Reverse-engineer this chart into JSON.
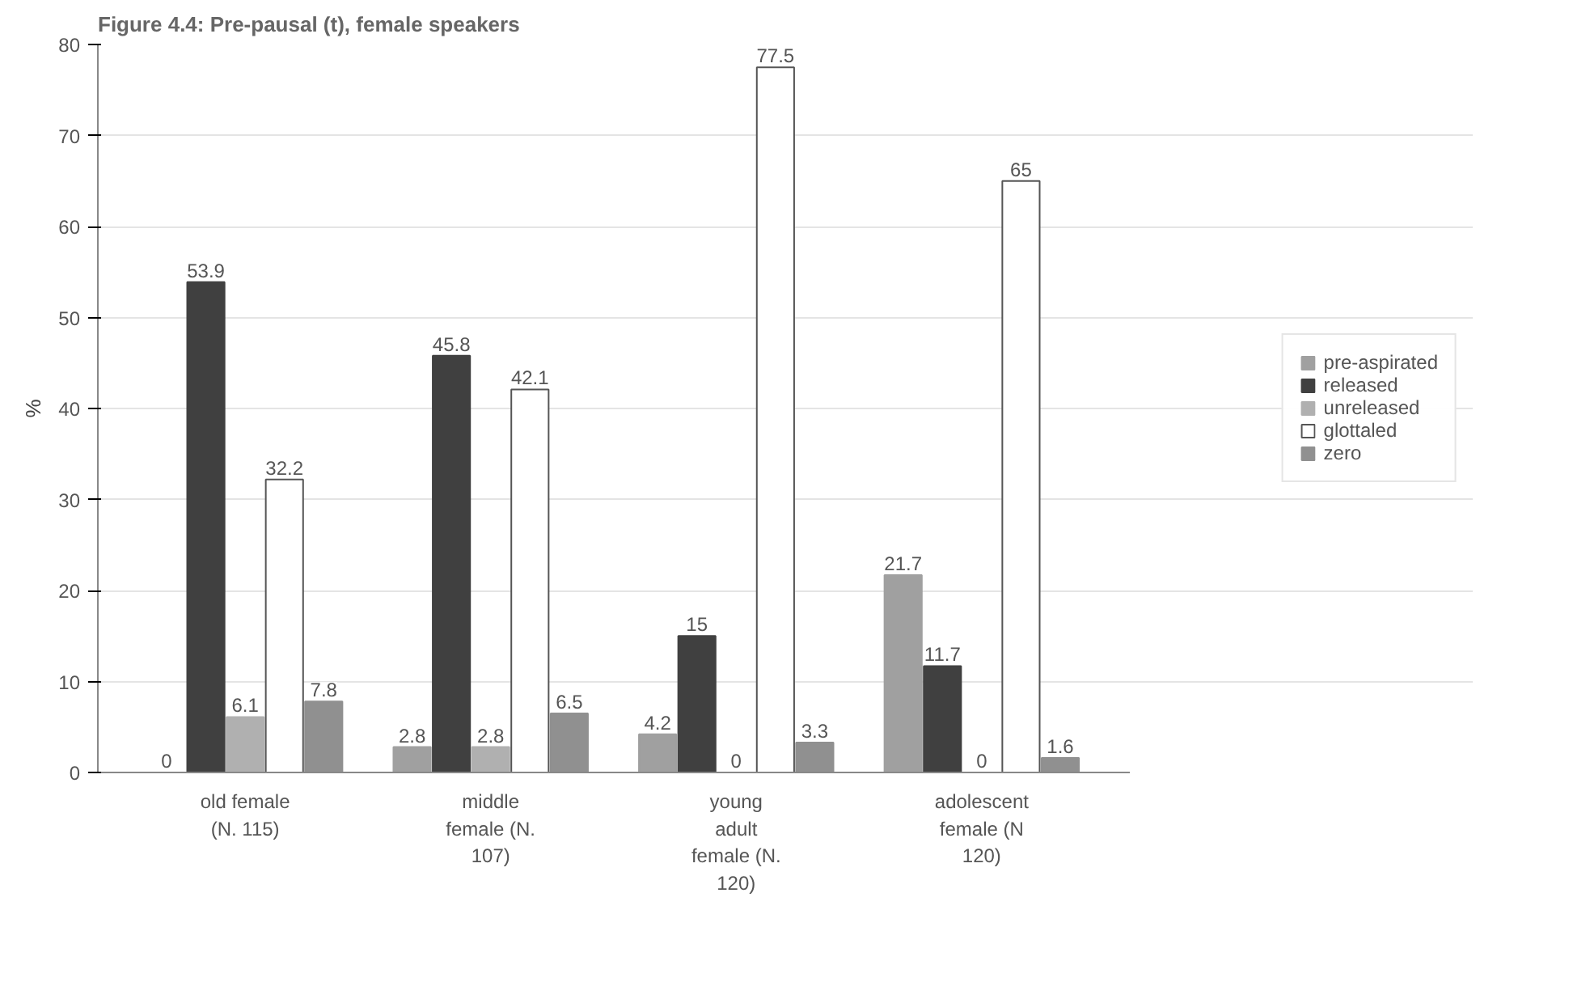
{
  "chart_data": {
    "type": "bar",
    "title": "Figure 4.4: Pre-pausal (t), female speakers",
    "ylabel": "%",
    "categories": [
      "old female\n(N. 115)",
      "middle\nfemale (N.\n107)",
      "young\nadult\nfemale (N.\n120)",
      "adolescent\nfemale (N\n120)"
    ],
    "series": [
      {
        "name": "pre-aspirated",
        "color": "#a0a0a0",
        "values": [
          0,
          2.8,
          4.2,
          21.7
        ]
      },
      {
        "name": "released",
        "color": "#404040",
        "values": [
          53.9,
          45.8,
          15,
          11.7
        ]
      },
      {
        "name": "unreleased",
        "color": "#b0b0b0",
        "values": [
          6.1,
          2.8,
          0,
          0
        ]
      },
      {
        "name": "glottaled",
        "color": "#ffffff",
        "values": [
          32.2,
          42.1,
          77.5,
          65
        ]
      },
      {
        "name": "zero",
        "color": "#909090",
        "values": [
          7.8,
          6.5,
          3.3,
          1.6
        ]
      }
    ],
    "ylim": [
      0,
      80
    ],
    "yticks": [
      0,
      10,
      20,
      30,
      40,
      50,
      60,
      70,
      80
    ],
    "grid": "y",
    "legend": "right",
    "data_labels": true
  }
}
